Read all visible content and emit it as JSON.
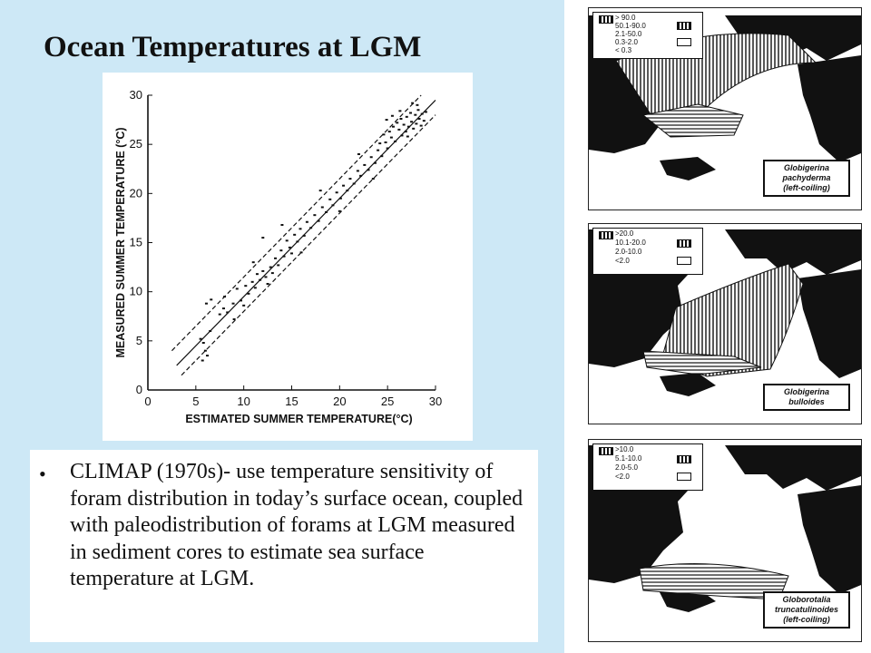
{
  "slide": {
    "title": "Ocean Temperatures at LGM",
    "bullet": "CLIMAP (1970s)- use temperature sensitivity of foram distribution in today’s surface ocean, coupled with paleodistribution of forams at LGM measured in sediment cores to estimate sea surface temperature at LGM."
  },
  "chart_data": {
    "type": "scatter",
    "title": "",
    "xlabel": "ESTIMATED SUMMER TEMPERATURE(°C)",
    "ylabel": "MEASURED SUMMER TEMPERATURE (°C)",
    "xlim": [
      0,
      30
    ],
    "ylim": [
      0,
      30
    ],
    "xticks": [
      "0",
      "5",
      "10",
      "15",
      "20",
      "25",
      "30"
    ],
    "yticks": [
      "0",
      "5",
      "10",
      "15",
      "20",
      "25",
      "30"
    ],
    "grid": false,
    "lines": [
      {
        "style": "solid",
        "x": [
          3,
          30
        ],
        "y": [
          2.5,
          29.5
        ]
      },
      {
        "style": "dashed",
        "x": [
          2.5,
          28.5
        ],
        "y": [
          4,
          30
        ]
      },
      {
        "style": "dashed",
        "x": [
          3.5,
          30
        ],
        "y": [
          1.5,
          28
        ]
      }
    ],
    "points": [
      [
        5.5,
        5.2
      ],
      [
        5.8,
        4.8
      ],
      [
        6.0,
        4.0
      ],
      [
        6.2,
        3.5
      ],
      [
        5.7,
        3.0
      ],
      [
        6.5,
        6.0
      ],
      [
        6.1,
        8.8
      ],
      [
        6.6,
        9.2
      ],
      [
        7.5,
        7.7
      ],
      [
        7.9,
        8.3
      ],
      [
        8.3,
        7.9
      ],
      [
        8.9,
        8.8
      ],
      [
        9.3,
        10.3
      ],
      [
        9.7,
        9.1
      ],
      [
        10.2,
        10.6
      ],
      [
        10.5,
        9.8
      ],
      [
        10.9,
        11.0
      ],
      [
        11.2,
        10.4
      ],
      [
        11.4,
        11.8
      ],
      [
        11.7,
        11.2
      ],
      [
        12.0,
        12.1
      ],
      [
        12.3,
        11.5
      ],
      [
        12.5,
        10.8
      ],
      [
        12.8,
        12.5
      ],
      [
        13.0,
        11.9
      ],
      [
        13.3,
        13.4
      ],
      [
        13.6,
        12.7
      ],
      [
        13.9,
        14.2
      ],
      [
        14.2,
        13.6
      ],
      [
        14.5,
        15.2
      ],
      [
        14.8,
        14.5
      ],
      [
        15.0,
        13.9
      ],
      [
        15.3,
        15.8
      ],
      [
        15.6,
        15.1
      ],
      [
        12.0,
        15.5
      ],
      [
        15.9,
        16.4
      ],
      [
        16.3,
        15.7
      ],
      [
        16.6,
        17.1
      ],
      [
        17.0,
        16.5
      ],
      [
        17.4,
        17.8
      ],
      [
        17.8,
        17.2
      ],
      [
        18.2,
        18.6
      ],
      [
        18.6,
        18.1
      ],
      [
        19.0,
        19.4
      ],
      [
        19.3,
        18.8
      ],
      [
        19.7,
        20.1
      ],
      [
        20.1,
        19.5
      ],
      [
        20.4,
        20.8
      ],
      [
        20.8,
        20.3
      ],
      [
        21.1,
        21.5
      ],
      [
        21.5,
        21.0
      ],
      [
        21.9,
        22.3
      ],
      [
        22.2,
        21.8
      ],
      [
        22.6,
        22.9
      ],
      [
        23.0,
        22.4
      ],
      [
        23.3,
        23.7
      ],
      [
        23.7,
        23.1
      ],
      [
        24.0,
        24.4
      ],
      [
        24.2,
        25.1
      ],
      [
        24.4,
        23.8
      ],
      [
        24.6,
        26.0
      ],
      [
        24.8,
        25.2
      ],
      [
        25.0,
        24.6
      ],
      [
        25.2,
        26.3
      ],
      [
        25.4,
        25.7
      ],
      [
        25.6,
        26.8
      ],
      [
        25.8,
        25.3
      ],
      [
        26.0,
        27.2
      ],
      [
        26.2,
        26.5
      ],
      [
        26.4,
        27.6
      ],
      [
        26.5,
        25.9
      ],
      [
        26.7,
        27.0
      ],
      [
        26.9,
        26.3
      ],
      [
        27.0,
        27.8
      ],
      [
        27.2,
        26.8
      ],
      [
        27.4,
        28.2
      ],
      [
        27.5,
        27.3
      ],
      [
        27.7,
        26.6
      ],
      [
        27.9,
        28.0
      ],
      [
        28.0,
        27.1
      ],
      [
        28.2,
        28.5
      ],
      [
        28.3,
        27.6
      ],
      [
        28.5,
        26.9
      ],
      [
        28.6,
        28.1
      ],
      [
        28.8,
        27.4
      ],
      [
        29.0,
        28.3
      ],
      [
        27.1,
        25.8
      ],
      [
        26.3,
        28.4
      ],
      [
        25.5,
        27.9
      ],
      [
        24.9,
        27.5
      ],
      [
        28.1,
        29.0
      ],
      [
        27.6,
        29.2
      ],
      [
        8.0,
        9.5
      ],
      [
        9.0,
        7.2
      ],
      [
        11.0,
        13.0
      ],
      [
        16.0,
        14.0
      ],
      [
        18.0,
        20.3
      ],
      [
        20.0,
        18.2
      ],
      [
        22.0,
        24.0
      ],
      [
        23.5,
        21.5
      ],
      [
        14.0,
        16.8
      ],
      [
        10.0,
        8.6
      ]
    ]
  },
  "maps": [
    {
      "legend": [
        "> 90.0",
        "50.1-90.0",
        "2.1-50.0",
        "0.3-2.0",
        "< 0.3"
      ],
      "caption": [
        "Globigerina",
        "pachyderma",
        "(left-coiling)"
      ]
    },
    {
      "legend": [
        ">20.0",
        "10.1-20.0",
        "2.0-10.0",
        "<2.0"
      ],
      "caption": [
        "Globigerina",
        "bulloides"
      ]
    },
    {
      "legend": [
        ">10.0",
        "5.1-10.0",
        "2.0-5.0",
        "<2.0"
      ],
      "caption": [
        "Globorotalia",
        "truncatulinoides",
        "(left-coiling)"
      ]
    }
  ]
}
